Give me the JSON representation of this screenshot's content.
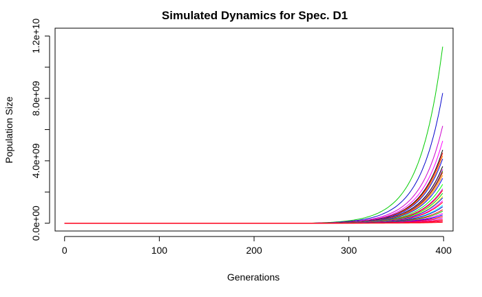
{
  "chart_data": {
    "type": "line",
    "title": "Simulated Dynamics for Spec. D1",
    "xlabel": "Generations",
    "ylabel": "Population Size",
    "xlim": [
      -10,
      410
    ],
    "ylim": [
      -500000000,
      12500000000
    ],
    "x_ticks": [
      0,
      100,
      200,
      300,
      400
    ],
    "x_tick_labels": [
      "0",
      "100",
      "200",
      "300",
      "400"
    ],
    "y_ticks": [
      0,
      4000000000,
      8000000000,
      12000000000
    ],
    "y_tick_labels": [
      "0.0e+00",
      "4.0e+09",
      "8.0e+09",
      "1.2e+10"
    ],
    "y_minor_ticks": [
      2000000000,
      6000000000,
      10000000000
    ],
    "grid": false,
    "legend": "none",
    "x_start": 0,
    "x_end": 400,
    "growth_onset": 255,
    "series": [
      {
        "color": "#00cc00",
        "final": 11800000000
      },
      {
        "color": "#0000cc",
        "final": 8700000000
      },
      {
        "color": "#cc00cc",
        "final": 6500000000
      },
      {
        "color": "#ff00ff",
        "final": 5500000000
      },
      {
        "color": "#000000",
        "final": 4900000000
      },
      {
        "color": "#ff0000",
        "final": 4700000000
      },
      {
        "color": "#ff9900",
        "final": 4500000000
      },
      {
        "color": "#0000ff",
        "final": 4300000000
      },
      {
        "color": "#000000",
        "final": 3800000000
      },
      {
        "color": "#ff00ff",
        "final": 3600000000
      },
      {
        "color": "#00cc00",
        "final": 3500000000
      },
      {
        "color": "#ff0000",
        "final": 3400000000
      },
      {
        "color": "#ff9900",
        "final": 3200000000
      },
      {
        "color": "#0000ff",
        "final": 3000000000
      },
      {
        "color": "#00ff00",
        "final": 2600000000
      },
      {
        "color": "#cc00cc",
        "final": 2300000000
      },
      {
        "color": "#ff0000",
        "final": 2200000000
      },
      {
        "color": "#00cc00",
        "final": 2000000000
      },
      {
        "color": "#ffff00",
        "final": 1800000000
      },
      {
        "color": "#0000ff",
        "final": 1700000000
      },
      {
        "color": "#ff00ff",
        "final": 1500000000
      },
      {
        "color": "#ff0000",
        "final": 1400000000
      },
      {
        "color": "#00ffff",
        "final": 1200000000
      },
      {
        "color": "#0000cc",
        "final": 1100000000
      },
      {
        "color": "#ff0000",
        "final": 900000000
      },
      {
        "color": "#00cc00",
        "final": 800000000
      },
      {
        "color": "#ff00ff",
        "final": 650000000
      },
      {
        "color": "#0000ff",
        "final": 550000000
      },
      {
        "color": "#ff0000",
        "final": 450000000
      },
      {
        "color": "#cc00cc",
        "final": 350000000
      },
      {
        "color": "#ff0066",
        "final": 250000000
      },
      {
        "color": "#ff0000",
        "final": 180000000
      },
      {
        "color": "#ff0066",
        "final": 120000000
      },
      {
        "color": "#ff0000",
        "final": 60000000
      }
    ]
  }
}
